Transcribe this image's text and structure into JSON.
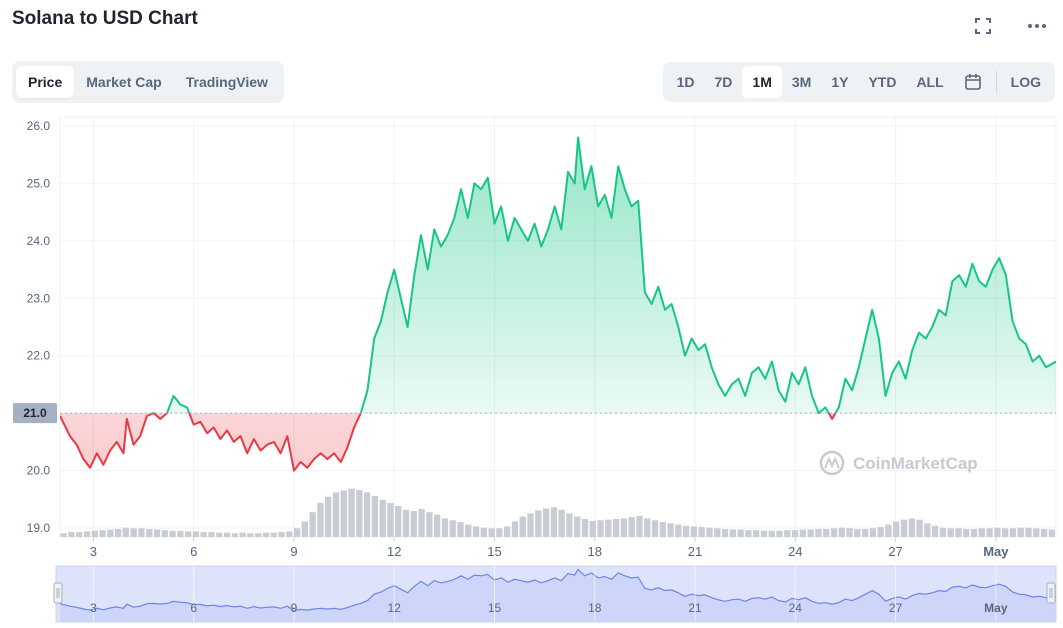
{
  "header": {
    "title": "Solana to USD Chart"
  },
  "icons": {
    "fullscreen": "fullscreen-icon",
    "more": "more-icon",
    "calendar": "calendar-icon"
  },
  "tabs": [
    {
      "label": "Price",
      "active": true
    },
    {
      "label": "Market Cap",
      "active": false
    },
    {
      "label": "TradingView",
      "active": false
    }
  ],
  "ranges": [
    {
      "label": "1D",
      "active": false
    },
    {
      "label": "7D",
      "active": false
    },
    {
      "label": "1M",
      "active": true
    },
    {
      "label": "3M",
      "active": false
    },
    {
      "label": "1Y",
      "active": false
    },
    {
      "label": "YTD",
      "active": false
    },
    {
      "label": "ALL",
      "active": false
    }
  ],
  "log_label": "LOG",
  "watermark": "CoinMarketCap",
  "colors": {
    "up": "#16c784",
    "down": "#ea3943",
    "volume": "#c8ccd3",
    "nav_fill": "#dde3fb",
    "nav_line": "#6e84e8"
  },
  "chart_data": {
    "type": "line",
    "title": "Solana to USD Chart",
    "baseline": 21.0,
    "baseline_label": "21.0",
    "ylim": [
      19.0,
      26.1
    ],
    "yticks": [
      "26.0",
      "25.0",
      "24.0",
      "23.0",
      "22.0",
      "21.0",
      "20.0",
      "19.0"
    ],
    "xlim": [
      2.0,
      31.8
    ],
    "xticks": [
      {
        "x": 3,
        "label": "3"
      },
      {
        "x": 6,
        "label": "6"
      },
      {
        "x": 9,
        "label": "9"
      },
      {
        "x": 12,
        "label": "12"
      },
      {
        "x": 15,
        "label": "15"
      },
      {
        "x": 18,
        "label": "18"
      },
      {
        "x": 21,
        "label": "21"
      },
      {
        "x": 24,
        "label": "24"
      },
      {
        "x": 27,
        "label": "27"
      },
      {
        "x": 30,
        "label": "May"
      }
    ],
    "series": [
      {
        "values": [
          [
            2.0,
            20.95
          ],
          [
            2.3,
            20.6
          ],
          [
            2.5,
            20.45
          ],
          [
            2.7,
            20.2
          ],
          [
            2.9,
            20.05
          ],
          [
            3.1,
            20.3
          ],
          [
            3.3,
            20.1
          ],
          [
            3.5,
            20.35
          ],
          [
            3.7,
            20.5
          ],
          [
            3.9,
            20.3
          ],
          [
            4.0,
            20.9
          ],
          [
            4.2,
            20.45
          ],
          [
            4.4,
            20.6
          ],
          [
            4.6,
            20.95
          ],
          [
            4.8,
            21.0
          ],
          [
            5.0,
            20.9
          ],
          [
            5.2,
            21.0
          ],
          [
            5.4,
            21.3
          ],
          [
            5.6,
            21.15
          ],
          [
            5.8,
            21.1
          ],
          [
            6.0,
            20.8
          ],
          [
            6.2,
            20.85
          ],
          [
            6.4,
            20.65
          ],
          [
            6.6,
            20.75
          ],
          [
            6.8,
            20.55
          ],
          [
            7.0,
            20.7
          ],
          [
            7.2,
            20.5
          ],
          [
            7.4,
            20.6
          ],
          [
            7.6,
            20.3
          ],
          [
            7.8,
            20.55
          ],
          [
            8.0,
            20.35
          ],
          [
            8.2,
            20.45
          ],
          [
            8.4,
            20.5
          ],
          [
            8.6,
            20.3
          ],
          [
            8.8,
            20.6
          ],
          [
            9.0,
            20.0
          ],
          [
            9.2,
            20.15
          ],
          [
            9.4,
            20.05
          ],
          [
            9.6,
            20.2
          ],
          [
            9.8,
            20.3
          ],
          [
            10.0,
            20.2
          ],
          [
            10.2,
            20.3
          ],
          [
            10.4,
            20.15
          ],
          [
            10.6,
            20.4
          ],
          [
            10.8,
            20.75
          ],
          [
            11.0,
            21.0
          ],
          [
            11.2,
            21.4
          ],
          [
            11.4,
            22.3
          ],
          [
            11.6,
            22.6
          ],
          [
            11.8,
            23.1
          ],
          [
            12.0,
            23.5
          ],
          [
            12.2,
            23.0
          ],
          [
            12.4,
            22.5
          ],
          [
            12.6,
            23.4
          ],
          [
            12.8,
            24.1
          ],
          [
            13.0,
            23.5
          ],
          [
            13.2,
            24.2
          ],
          [
            13.4,
            23.9
          ],
          [
            13.6,
            24.1
          ],
          [
            13.8,
            24.4
          ],
          [
            14.0,
            24.9
          ],
          [
            14.2,
            24.4
          ],
          [
            14.4,
            25.0
          ],
          [
            14.6,
            24.9
          ],
          [
            14.8,
            25.1
          ],
          [
            15.0,
            24.3
          ],
          [
            15.2,
            24.6
          ],
          [
            15.4,
            24.0
          ],
          [
            15.6,
            24.4
          ],
          [
            15.8,
            24.2
          ],
          [
            16.0,
            24.0
          ],
          [
            16.2,
            24.3
          ],
          [
            16.4,
            23.9
          ],
          [
            16.6,
            24.2
          ],
          [
            16.8,
            24.6
          ],
          [
            17.0,
            24.2
          ],
          [
            17.2,
            25.2
          ],
          [
            17.4,
            25.0
          ],
          [
            17.5,
            25.8
          ],
          [
            17.7,
            24.9
          ],
          [
            17.9,
            25.3
          ],
          [
            18.1,
            24.6
          ],
          [
            18.3,
            24.8
          ],
          [
            18.5,
            24.4
          ],
          [
            18.7,
            25.3
          ],
          [
            18.9,
            24.9
          ],
          [
            19.1,
            24.6
          ],
          [
            19.3,
            24.7
          ],
          [
            19.5,
            23.1
          ],
          [
            19.7,
            22.9
          ],
          [
            19.9,
            23.2
          ],
          [
            20.1,
            22.8
          ],
          [
            20.3,
            22.9
          ],
          [
            20.5,
            22.5
          ],
          [
            20.7,
            22.0
          ],
          [
            20.9,
            22.3
          ],
          [
            21.1,
            22.1
          ],
          [
            21.3,
            22.2
          ],
          [
            21.5,
            21.8
          ],
          [
            21.7,
            21.5
          ],
          [
            21.9,
            21.3
          ],
          [
            22.1,
            21.5
          ],
          [
            22.3,
            21.6
          ],
          [
            22.5,
            21.3
          ],
          [
            22.7,
            21.7
          ],
          [
            22.9,
            21.8
          ],
          [
            23.1,
            21.6
          ],
          [
            23.3,
            21.9
          ],
          [
            23.5,
            21.4
          ],
          [
            23.7,
            21.2
          ],
          [
            23.9,
            21.7
          ],
          [
            24.1,
            21.5
          ],
          [
            24.3,
            21.8
          ],
          [
            24.5,
            21.3
          ],
          [
            24.7,
            21.0
          ],
          [
            24.9,
            21.1
          ],
          [
            25.1,
            20.9
          ],
          [
            25.3,
            21.1
          ],
          [
            25.5,
            21.6
          ],
          [
            25.7,
            21.4
          ],
          [
            25.9,
            21.8
          ],
          [
            26.1,
            22.3
          ],
          [
            26.3,
            22.8
          ],
          [
            26.5,
            22.3
          ],
          [
            26.7,
            21.3
          ],
          [
            26.9,
            21.7
          ],
          [
            27.1,
            21.9
          ],
          [
            27.3,
            21.6
          ],
          [
            27.5,
            22.1
          ],
          [
            27.7,
            22.4
          ],
          [
            27.9,
            22.3
          ],
          [
            28.1,
            22.5
          ],
          [
            28.3,
            22.8
          ],
          [
            28.5,
            22.7
          ],
          [
            28.7,
            23.3
          ],
          [
            28.9,
            23.4
          ],
          [
            29.1,
            23.2
          ],
          [
            29.3,
            23.6
          ],
          [
            29.5,
            23.3
          ],
          [
            29.7,
            23.2
          ],
          [
            29.9,
            23.5
          ],
          [
            30.1,
            23.7
          ],
          [
            30.3,
            23.4
          ],
          [
            30.5,
            22.6
          ],
          [
            30.7,
            22.3
          ],
          [
            30.9,
            22.2
          ],
          [
            31.1,
            21.9
          ],
          [
            31.3,
            22.0
          ],
          [
            31.5,
            21.8
          ],
          [
            31.8,
            21.9
          ]
        ]
      }
    ],
    "volume": [
      0.06,
      0.08,
      0.08,
      0.09,
      0.1,
      0.11,
      0.12,
      0.13,
      0.15,
      0.14,
      0.14,
      0.13,
      0.12,
      0.11,
      0.1,
      0.1,
      0.09,
      0.09,
      0.08,
      0.08,
      0.07,
      0.07,
      0.06,
      0.07,
      0.06,
      0.06,
      0.07,
      0.07,
      0.08,
      0.09,
      0.14,
      0.25,
      0.4,
      0.55,
      0.65,
      0.72,
      0.75,
      0.78,
      0.76,
      0.72,
      0.66,
      0.6,
      0.55,
      0.5,
      0.44,
      0.42,
      0.45,
      0.4,
      0.36,
      0.3,
      0.27,
      0.24,
      0.2,
      0.17,
      0.15,
      0.14,
      0.14,
      0.17,
      0.25,
      0.33,
      0.38,
      0.43,
      0.46,
      0.48,
      0.44,
      0.38,
      0.33,
      0.29,
      0.26,
      0.27,
      0.28,
      0.29,
      0.3,
      0.32,
      0.34,
      0.3,
      0.27,
      0.24,
      0.22,
      0.2,
      0.18,
      0.17,
      0.16,
      0.15,
      0.14,
      0.13,
      0.12,
      0.12,
      0.11,
      0.11,
      0.1,
      0.1,
      0.1,
      0.11,
      0.11,
      0.12,
      0.12,
      0.13,
      0.13,
      0.14,
      0.15,
      0.14,
      0.13,
      0.13,
      0.14,
      0.16,
      0.2,
      0.25,
      0.28,
      0.3,
      0.28,
      0.22,
      0.18,
      0.15,
      0.14,
      0.14,
      0.13,
      0.13,
      0.14,
      0.14,
      0.15,
      0.14,
      0.14,
      0.15,
      0.15,
      0.14,
      0.13,
      0.12
    ]
  }
}
